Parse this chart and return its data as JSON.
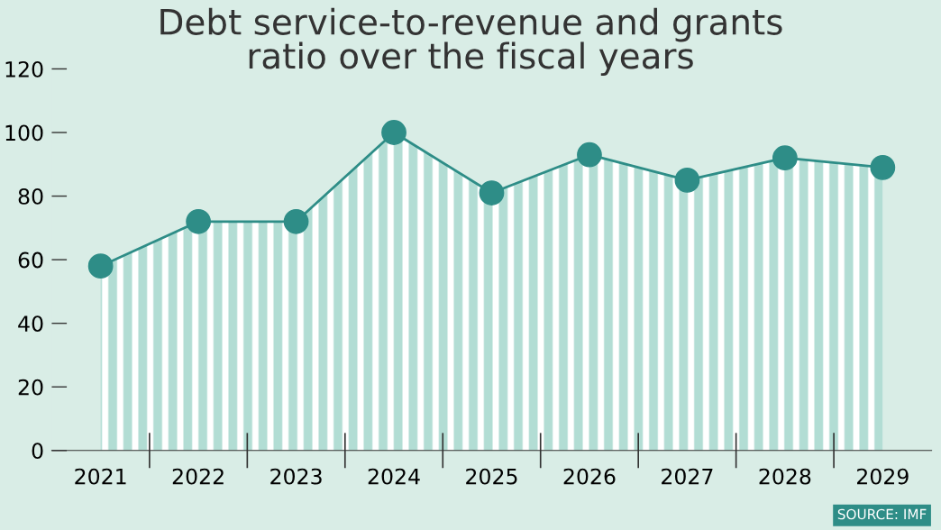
{
  "chart_data": {
    "type": "area",
    "title": "Debt service-to-revenue and grants\nratio over the fiscal years",
    "categories": [
      "2021",
      "2022",
      "2023",
      "2024",
      "2025",
      "2026",
      "2027",
      "2028",
      "2029"
    ],
    "series": [
      {
        "color": "#2e8d87",
        "values": [
          58,
          72,
          72,
          100,
          81,
          93,
          85,
          92,
          89
        ]
      }
    ],
    "ylim": [
      0,
      120
    ],
    "yticks": [
      0,
      20,
      40,
      60,
      80,
      100,
      120
    ],
    "marker": "circle",
    "line_style": "solid",
    "grid": false,
    "legend": false,
    "annotations": [
      "SOURCE: IMF"
    ]
  }
}
